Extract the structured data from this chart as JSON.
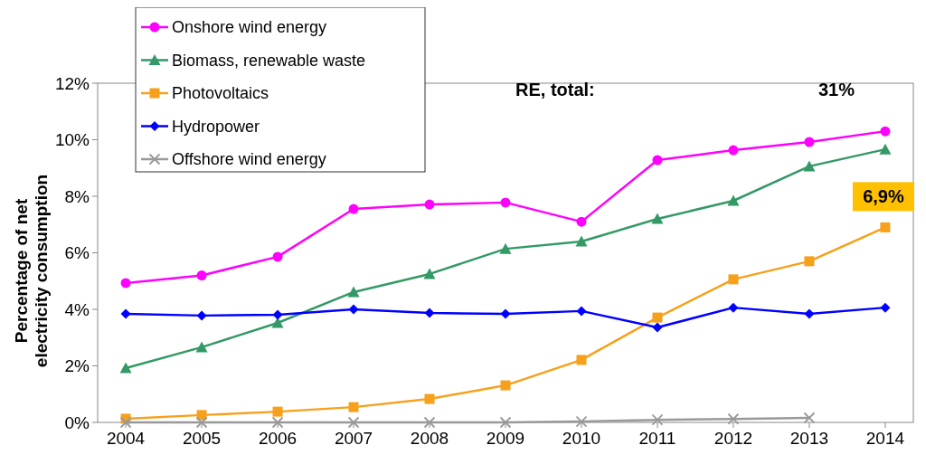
{
  "chart_data": {
    "type": "line",
    "ylabel": "Percentage of net electricity consumption",
    "categories": [
      "2004",
      "2005",
      "2006",
      "2007",
      "2008",
      "2009",
      "2010",
      "2011",
      "2012",
      "2013",
      "2014"
    ],
    "ylim": [
      0,
      12
    ],
    "yticks": [
      {
        "value": 0,
        "label": "0%"
      },
      {
        "value": 2,
        "label": "2%"
      },
      {
        "value": 4,
        "label": "4%"
      },
      {
        "value": 6,
        "label": "6%"
      },
      {
        "value": 8,
        "label": "8%"
      },
      {
        "value": 10,
        "label": "10%"
      },
      {
        "value": 12,
        "label": "12%"
      }
    ],
    "grid": false,
    "legend": "top left",
    "line_style": "solid",
    "series": [
      {
        "name": "Onshore wind energy",
        "color": "#ff00ff",
        "marker": "circle",
        "values": [
          4.93,
          5.2,
          5.86,
          7.55,
          7.71,
          7.78,
          7.1,
          9.28,
          9.63,
          9.92,
          10.3
        ]
      },
      {
        "name": "Biomass, renewable waste",
        "color": "#339966",
        "marker": "triangle",
        "values": [
          1.92,
          2.66,
          3.52,
          4.61,
          5.25,
          6.14,
          6.4,
          7.2,
          7.84,
          9.06,
          9.66
        ]
      },
      {
        "name": "Photovoltaics",
        "color": "#f7a01b",
        "marker": "square",
        "values": [
          0.13,
          0.26,
          0.38,
          0.54,
          0.83,
          1.31,
          2.21,
          3.71,
          5.06,
          5.7,
          6.9
        ]
      },
      {
        "name": "Hydropower",
        "color": "#0000ff",
        "marker": "diamond",
        "values": [
          3.84,
          3.78,
          3.81,
          4.0,
          3.87,
          3.84,
          3.94,
          3.36,
          4.06,
          3.84,
          4.06
        ]
      },
      {
        "name": "Offshore wind energy",
        "color": "#999999",
        "marker": "cross",
        "values": [
          0,
          0,
          0,
          0,
          0,
          0,
          0.03,
          0.09,
          0.12,
          0.16,
          null
        ]
      }
    ],
    "annotations": [
      "RE, total:",
      "31%",
      {
        "text": "6,9%",
        "x": "2014",
        "y": 6.9
      }
    ]
  }
}
